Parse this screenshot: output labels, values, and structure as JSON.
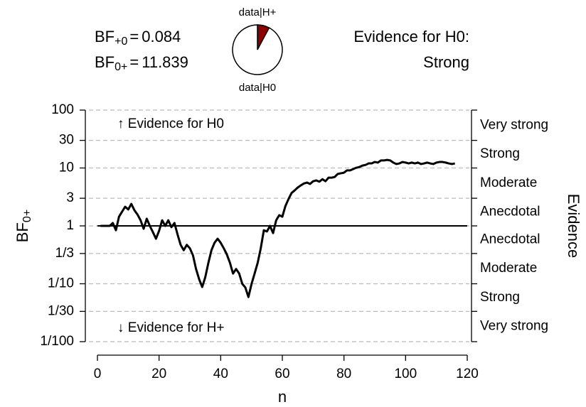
{
  "chart_data": {
    "type": "line",
    "bf_labels": [
      {
        "label": "BF",
        "subscript": "+0",
        "operator": "=",
        "value": 0.084
      },
      {
        "label": "BF",
        "subscript": "0+",
        "operator": "=",
        "value": 11.839
      }
    ],
    "pie": {
      "labels": [
        "data|H+",
        "data|H0"
      ],
      "values": [
        0.078,
        0.922
      ],
      "colors": [
        "#8b0000",
        "#ffffff"
      ]
    },
    "evidence_title": "Evidence for H0:",
    "evidence_level": "Strong",
    "annotations": [
      "↑ Evidence for H0",
      "↓ Evidence for H+"
    ],
    "y_label": {
      "text": "BF",
      "subscript": "0+"
    },
    "x_label": "n",
    "right_label": "Evidence",
    "evidence_categories": [
      "Very strong",
      "Strong",
      "Moderate",
      "Anecdotal",
      "Anecdotal",
      "Moderate",
      "Strong",
      "Very strong"
    ],
    "log_y": true,
    "grid": true,
    "reference_line": 1,
    "color": "#000000",
    "xlim": [
      0,
      120
    ],
    "xticks": [
      0,
      20,
      40,
      60,
      80,
      100,
      120
    ],
    "ylim": [
      0.01,
      100
    ],
    "yticks": [
      100,
      30,
      10,
      3,
      1,
      {
        "value": 0.3333,
        "label": "1/3"
      },
      {
        "value": 0.1,
        "label": "1/10"
      },
      {
        "value": 0.03333,
        "label": "1/30"
      },
      {
        "value": 0.01,
        "label": "1/100"
      }
    ],
    "x": [
      1,
      2,
      3,
      4,
      5,
      6,
      7,
      8,
      9,
      10,
      11,
      12,
      13,
      14,
      15,
      16,
      17,
      18,
      19,
      20,
      21,
      22,
      23,
      24,
      25,
      26,
      27,
      28,
      29,
      30,
      31,
      32,
      33,
      34,
      35,
      36,
      37,
      38,
      39,
      40,
      41,
      42,
      43,
      44,
      45,
      46,
      47,
      48,
      49,
      50,
      51,
      52,
      53,
      54,
      55,
      56,
      57,
      58,
      59,
      60,
      61,
      62,
      63,
      64,
      65,
      66,
      67,
      68,
      69,
      70,
      71,
      72,
      73,
      74,
      75,
      76,
      77,
      78,
      79,
      80,
      81,
      82,
      83,
      84,
      85,
      86,
      87,
      88,
      89,
      90,
      91,
      92,
      93,
      94,
      95,
      96,
      97,
      98,
      99,
      100,
      101,
      102,
      103,
      104,
      105,
      106,
      107,
      108,
      109,
      110,
      111,
      112,
      113,
      114,
      115,
      116
    ],
    "values": [
      1,
      1,
      1,
      1,
      1.12,
      0.84,
      1.44,
      1.76,
      2.14,
      1.92,
      2.4,
      1.86,
      1.57,
      1.25,
      0.89,
      1.33,
      1,
      0.78,
      0.6,
      0.82,
      1.25,
      1,
      1.25,
      0.95,
      1.12,
      0.71,
      0.47,
      0.38,
      0.47,
      0.41,
      0.31,
      0.18,
      0.12,
      0.088,
      0.13,
      0.23,
      0.38,
      0.51,
      0.6,
      0.51,
      0.41,
      0.32,
      0.23,
      0.15,
      0.18,
      0.15,
      0.1,
      0.086,
      0.059,
      0.099,
      0.15,
      0.23,
      0.41,
      0.84,
      0.8,
      1,
      0.75,
      1.25,
      1.53,
      1.44,
      2.2,
      2.9,
      3.7,
      4.1,
      4.6,
      5.0,
      5.4,
      5.6,
      5.3,
      5.9,
      6.1,
      5.8,
      6.4,
      5.9,
      6.8,
      6.8,
      7.0,
      7.9,
      8.1,
      8.3,
      9.1,
      9.1,
      9.6,
      10.1,
      10.4,
      11.0,
      11.3,
      12.0,
      12.0,
      12.7,
      12.4,
      13.5,
      13.5,
      13.8,
      13.5,
      12.4,
      11.7,
      12.0,
      12.7,
      12.4,
      12.0,
      12.4,
      12.0,
      12.4,
      11.7,
      12.0,
      12.4,
      12.0,
      11.7,
      12.4,
      12.7,
      12.7,
      12.4,
      12.0,
      11.7,
      12.0
    ]
  }
}
